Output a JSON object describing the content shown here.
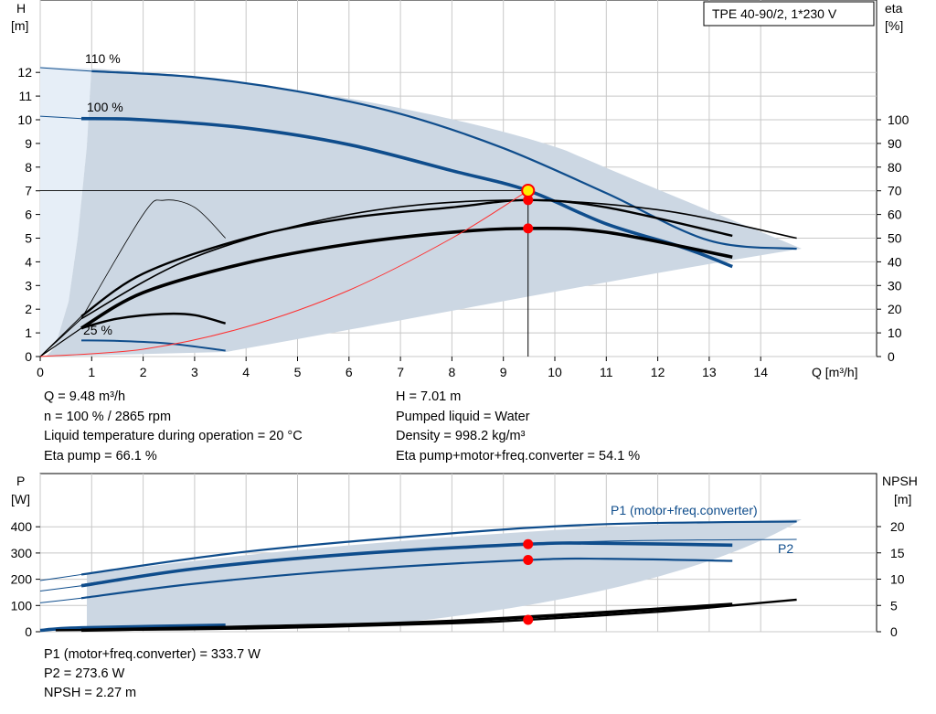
{
  "chart_data": [
    {
      "type": "line",
      "title": "TPE 40-90/2, 1*230 V",
      "xlabel": "Q [m³/h]",
      "ylabel": "H [m]",
      "ylabel_right": "eta [%]",
      "xlim": [
        0,
        15.5
      ],
      "ylim": [
        0,
        13
      ],
      "ylim_right": [
        0,
        130
      ],
      "xticks": [
        0,
        1,
        2,
        3,
        4,
        5,
        6,
        7,
        8,
        9,
        10,
        11,
        12,
        13,
        14
      ],
      "yticks": [
        0,
        1,
        2,
        3,
        4,
        5,
        6,
        7,
        8,
        9,
        10,
        11,
        12
      ],
      "yticks_right": [
        0,
        10,
        20,
        30,
        40,
        50,
        60,
        70,
        80,
        90,
        100
      ],
      "grid": true,
      "series": [
        {
          "name": "110 %",
          "color": "#0f4d8c",
          "points": [
            [
              1,
              12.05
            ],
            [
              3,
              11.8
            ],
            [
              5,
              11.2
            ],
            [
              7,
              10.25
            ],
            [
              9,
              8.8
            ],
            [
              11,
              6.9
            ],
            [
              13,
              4.9
            ],
            [
              14.7,
              4.55
            ]
          ]
        },
        {
          "name": "100 %",
          "color": "#0f4d8c",
          "points": [
            [
              0.8,
              10.05
            ],
            [
              2,
              10.0
            ],
            [
              4,
              9.65
            ],
            [
              6,
              8.95
            ],
            [
              8,
              7.85
            ],
            [
              9.48,
              7.01
            ],
            [
              11,
              5.6
            ],
            [
              12.5,
              4.6
            ],
            [
              13.45,
              3.8
            ]
          ]
        },
        {
          "name": "25 %",
          "color": "#0f4d8c",
          "points": [
            [
              0.8,
              0.68
            ],
            [
              1.5,
              0.66
            ],
            [
              2.5,
              0.55
            ],
            [
              3.6,
              0.25
            ]
          ]
        }
      ],
      "eta_curves": {
        "unit": "%",
        "eta_pump_100": {
          "points": [
            [
              0.8,
              17
            ],
            [
              2,
              35
            ],
            [
              4,
              50
            ],
            [
              6,
              58.5
            ],
            [
              8,
              63
            ],
            [
              9.48,
              66.1
            ],
            [
              11,
              63
            ],
            [
              13.45,
              51
            ]
          ]
        },
        "eta_total_100": {
          "points": [
            [
              0.8,
              12
            ],
            [
              2,
              27
            ],
            [
              4,
              39.5
            ],
            [
              6,
              47.5
            ],
            [
              8,
              52.5
            ],
            [
              9.48,
              54.1
            ],
            [
              11,
              52.5
            ],
            [
              13.45,
              42
            ]
          ]
        },
        "eta_110": {
          "points": [
            [
              0.8,
              16
            ],
            [
              3,
              42
            ],
            [
              6,
              60
            ],
            [
              9,
              66
            ],
            [
              12,
              62
            ],
            [
              14.7,
              50
            ]
          ]
        },
        "eta_25": {
          "points": [
            [
              0.8,
              12
            ],
            [
              1.5,
              16
            ],
            [
              2.4,
              18
            ],
            [
              3,
              17.5
            ],
            [
              3.6,
              14
            ]
          ]
        }
      },
      "operating_point": {
        "Q": 9.48,
        "H": 7.01,
        "eta_pump": 66.1,
        "eta_total": 54.1
      }
    },
    {
      "type": "line",
      "xlabel": "",
      "ylabel": "P [W]",
      "ylabel_right": "NPSH [m]",
      "xlim": [
        0,
        15.5
      ],
      "ylim": [
        0,
        500
      ],
      "ylim_right": [
        0,
        25
      ],
      "yticks": [
        0,
        100,
        200,
        300,
        400
      ],
      "yticks_right": [
        0,
        5,
        10,
        15,
        20
      ],
      "grid": true,
      "series": [
        {
          "name": "P1 (motor+freq.converter)",
          "color": "#0f4d8c",
          "points": [
            [
              0.8,
              175
            ],
            [
              3,
              240
            ],
            [
              6,
              295
            ],
            [
              9.48,
              333.7
            ],
            [
              11,
              337
            ],
            [
              13.45,
              330
            ]
          ]
        },
        {
          "name": "P2",
          "color": "#0f4d8c",
          "points": [
            [
              0.8,
              128
            ],
            [
              3,
              183
            ],
            [
              6,
              235
            ],
            [
              9.48,
              273.6
            ],
            [
              11,
              278
            ],
            [
              13.45,
              270
            ]
          ]
        },
        {
          "name": "P1 110 %",
          "color": "#0f4d8c",
          "points": [
            [
              0.8,
              218
            ],
            [
              4,
              305
            ],
            [
              8,
              375
            ],
            [
              11,
              410
            ],
            [
              14.7,
              420
            ]
          ]
        },
        {
          "name": "NPSH",
          "color": "#000000",
          "points": [
            [
              0.3,
              0.3
            ],
            [
              4,
              0.6
            ],
            [
              8,
              1.6
            ],
            [
              9.48,
              2.27
            ],
            [
              12,
              3.8
            ],
            [
              13.45,
              5.0
            ],
            [
              14.7,
              6.1
            ]
          ]
        }
      ],
      "operating_point": {
        "Q": 9.48,
        "P1": 333.7,
        "P2": 273.6,
        "NPSH": 2.27
      }
    }
  ],
  "info_top": {
    "q": "Q = 9.48 m³/h",
    "h": "H = 7.01 m",
    "n": "n = 100 % / 2865 rpm",
    "liquid": "Pumped liquid = Water",
    "temp": "Liquid temperature during operation = 20 °C",
    "density": "Density = 998.2 kg/m³",
    "eta_pump": "Eta pump = 66.1 %",
    "eta_total": "Eta pump+motor+freq.converter = 54.1 %"
  },
  "info_bottom": {
    "p1": "P1 (motor+freq.converter) = 333.7 W",
    "p2": "P2 = 273.6 W",
    "npsh": "NPSH = 2.27 m"
  },
  "labels": {
    "top_h_axis": "H",
    "top_h_unit": "[m]",
    "top_eta_axis": "eta",
    "top_eta_unit": "[%]",
    "top_x_axis": "Q [m³/h]",
    "bot_p_axis": "P",
    "bot_p_unit": "[W]",
    "bot_npsh_axis": "NPSH",
    "bot_npsh_unit": "[m]",
    "curve_110": "110 %",
    "curve_100": "100 %",
    "curve_25": "25 %",
    "curve_p1": "P1 (motor+freq.converter)",
    "curve_p2": "P2"
  },
  "colors": {
    "curve_blue": "#0f4d8c",
    "area_fill": "#ccd7e3",
    "area_light": "#e6eef7",
    "op_point": "#ff0000",
    "op_marker_fill": "#ffee00",
    "eff_line": "#ff3030",
    "grid": "#c8c8c8"
  }
}
